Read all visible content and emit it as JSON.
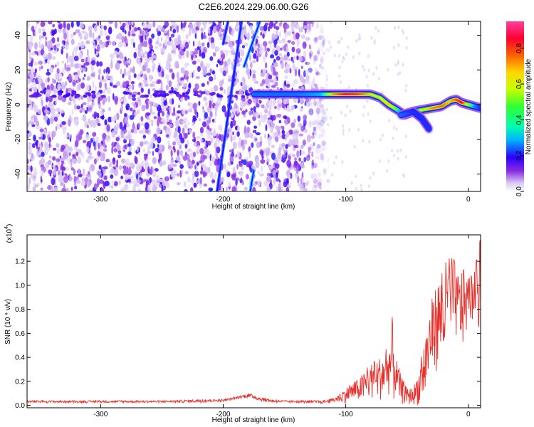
{
  "figure": {
    "title": "C2E6.2024.229.06.00.G26"
  },
  "colors": {
    "snr_line": "#e8302a",
    "frame": "#000000",
    "colormap": [
      "#ffffff",
      "#d9c8f5",
      "#8a2be2",
      "#2a00ff",
      "#00b0ff",
      "#00ffb0",
      "#30ff30",
      "#c8ff00",
      "#ffd700",
      "#ff6000",
      "#ff0030",
      "#ff40a0"
    ]
  },
  "chart_data": [
    {
      "type": "heatmap",
      "title": "",
      "xlabel": "Height of straight line (km)",
      "ylabel": "Frequency (Hz)",
      "xlim": [
        -360,
        10
      ],
      "ylim": [
        -50,
        48
      ],
      "x_ticks": [
        "-300",
        "-200",
        "-100",
        "0"
      ],
      "x_tick_values": [
        -300,
        -200,
        -100,
        0
      ],
      "y_ticks": [
        "40",
        "20",
        "0",
        "-20",
        "-40"
      ],
      "y_tick_values": [
        40,
        20,
        0,
        -20,
        -40
      ],
      "colorbar": {
        "label": "Normalized spectral amplitude",
        "range": [
          0.0,
          0.95
        ],
        "ticks": [
          "0.0",
          "0.2",
          "0.4",
          "0.6",
          "0.8"
        ],
        "tick_values": [
          0.0,
          0.2,
          0.4,
          0.6,
          0.8
        ]
      },
      "noise_region_x": [
        -360,
        -120
      ],
      "ridge": {
        "x": [
          -175,
          -160,
          -140,
          -120,
          -110,
          -100,
          -90,
          -80,
          -72,
          -65,
          -58,
          -52,
          -45,
          -38,
          -30,
          -22,
          -15,
          -10,
          -5,
          0,
          5,
          10
        ],
        "y": [
          6,
          6,
          6,
          6,
          6,
          6,
          6,
          6,
          4,
          0,
          -3,
          -6,
          -4,
          -3,
          -2,
          -1,
          2,
          3,
          1,
          0,
          -1,
          -2
        ],
        "amplitude": [
          0.35,
          0.35,
          0.35,
          0.4,
          0.75,
          0.9,
          0.85,
          0.7,
          0.6,
          0.7,
          0.5,
          0.35,
          0.55,
          0.6,
          0.75,
          0.8,
          0.7,
          0.8,
          0.9,
          0.6,
          0.4,
          0.3
        ]
      },
      "secondary_branch": {
        "x": [
          -55,
          -45,
          -38,
          -32
        ],
        "y": [
          -6,
          -4,
          -8,
          -14
        ],
        "amplitude": [
          0.35,
          0.3,
          0.3,
          0.3
        ]
      },
      "oblique_streaks": [
        {
          "x": [
            -205,
            -185
          ],
          "y": [
            -50,
            48
          ],
          "amplitude": 0.25
        },
        {
          "x": [
            -183,
            -170
          ],
          "y": [
            22,
            48
          ],
          "amplitude": 0.3
        },
        {
          "x": [
            -178,
            -175
          ],
          "y": [
            -50,
            -38
          ],
          "amplitude": 0.3
        },
        {
          "x": [
            -200,
            -196
          ],
          "y": [
            35,
            48
          ],
          "amplitude": 0.25
        }
      ]
    },
    {
      "type": "line",
      "title": "",
      "xlabel": "Height of straight line (km)",
      "ylabel": "SNR (10 * v/v)",
      "y_multiplier_label": "(x10",
      "y_multiplier_exponent": "4",
      "y_multiplier_close": ")",
      "xlim": [
        -360,
        10
      ],
      "ylim": [
        -0.02,
        1.42
      ],
      "x_ticks": [
        "-300",
        "-200",
        "-100",
        "0"
      ],
      "x_tick_values": [
        -300,
        -200,
        -100,
        0
      ],
      "y_ticks": [
        "0.0",
        "0.2",
        "0.4",
        "0.6",
        "0.8",
        "1.0",
        "1.2"
      ],
      "y_tick_values": [
        0.0,
        0.2,
        0.4,
        0.6,
        0.8,
        1.0,
        1.2
      ],
      "series": [
        {
          "x": [
            -360,
            -300,
            -250,
            -220,
            -200,
            -190,
            -180,
            -175,
            -170,
            -160,
            -150,
            -140,
            -120,
            -110,
            -100,
            -95,
            -90,
            -85,
            -80,
            -75,
            -70,
            -65,
            -62,
            -60,
            -55,
            -50,
            -45,
            -40,
            -35,
            -30,
            -25,
            -20,
            -17,
            -15,
            -12,
            -10,
            -5,
            0,
            5,
            10
          ],
          "baseline": [
            0.03,
            0.03,
            0.03,
            0.035,
            0.04,
            0.06,
            0.08,
            0.07,
            0.05,
            0.035,
            0.03,
            0.03,
            0.025,
            0.04,
            0.08,
            0.1,
            0.12,
            0.14,
            0.18,
            0.2,
            0.22,
            0.28,
            0.3,
            0.25,
            0.12,
            0.06,
            0.05,
            0.1,
            0.3,
            0.55,
            0.65,
            0.7,
            0.75,
            0.8,
            0.85,
            0.8,
            0.75,
            0.85,
            0.9,
            0.95
          ],
          "envelope": [
            0.04,
            0.04,
            0.04,
            0.05,
            0.05,
            0.07,
            0.1,
            0.09,
            0.07,
            0.05,
            0.04,
            0.04,
            0.04,
            0.06,
            0.15,
            0.18,
            0.22,
            0.28,
            0.35,
            0.38,
            0.42,
            0.5,
            0.75,
            0.45,
            0.25,
            0.14,
            0.15,
            0.3,
            0.62,
            0.88,
            1.05,
            1.12,
            1.28,
            1.2,
            1.25,
            1.1,
            1.15,
            1.05,
            1.12,
            1.4
          ]
        }
      ]
    }
  ]
}
